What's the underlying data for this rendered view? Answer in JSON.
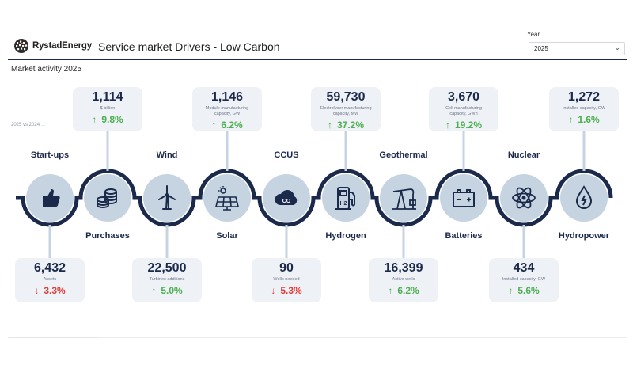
{
  "header": {
    "logo_text": "RystadEnergy",
    "title": "Service market Drivers - Low Carbon",
    "year_label": "Year",
    "year_value": "2025"
  },
  "section_title": "Market activity 2025",
  "compare_label": "2025 vs 2024 →",
  "colors": {
    "navy": "#1b2a4a",
    "node": "#c6d3e1",
    "card": "#eef1f6",
    "up": "#4caf50",
    "down": "#e53935"
  },
  "nodes": [
    {
      "label": "Start-ups",
      "icon": "thumbs-up-icon",
      "value": "6,432",
      "sub": "Assets",
      "change": "3.3%",
      "dir": "down"
    },
    {
      "label": "Purchases",
      "icon": "coins-icon",
      "value": "1,114",
      "sub": "$ billion",
      "change": "9.8%",
      "dir": "up"
    },
    {
      "label": "Wind",
      "icon": "wind-turbine-icon",
      "value": "22,500",
      "sub": "Turbines additions",
      "change": "5.0%",
      "dir": "up"
    },
    {
      "label": "Solar",
      "icon": "solar-panel-icon",
      "value": "1,146",
      "sub": "Module manufacturing capacity, GW",
      "change": "6.2%",
      "dir": "up"
    },
    {
      "label": "CCUS",
      "icon": "co2-cloud-icon",
      "value": "90",
      "sub": "Wells needed",
      "change": "5.3%",
      "dir": "down"
    },
    {
      "label": "Hydrogen",
      "icon": "hydrogen-pump-icon",
      "value": "59,730",
      "sub": "Electrolyser manufacturing capacity, MW",
      "change": "37.2%",
      "dir": "up"
    },
    {
      "label": "Geothermal",
      "icon": "pumpjack-icon",
      "value": "16,399",
      "sub": "Active wells",
      "change": "6.2%",
      "dir": "up"
    },
    {
      "label": "Batteries",
      "icon": "battery-icon",
      "value": "3,670",
      "sub": "Cell manufacturing capacity, GWh",
      "change": "19.2%",
      "dir": "up"
    },
    {
      "label": "Nuclear",
      "icon": "atom-icon",
      "value": "434",
      "sub": "Installed capacity, GW",
      "change": "5.6%",
      "dir": "up"
    },
    {
      "label": "Hydropower",
      "icon": "water-drop-icon",
      "value": "1,272",
      "sub": "Installed capacity, GW",
      "change": "1.6%",
      "dir": "up"
    }
  ]
}
